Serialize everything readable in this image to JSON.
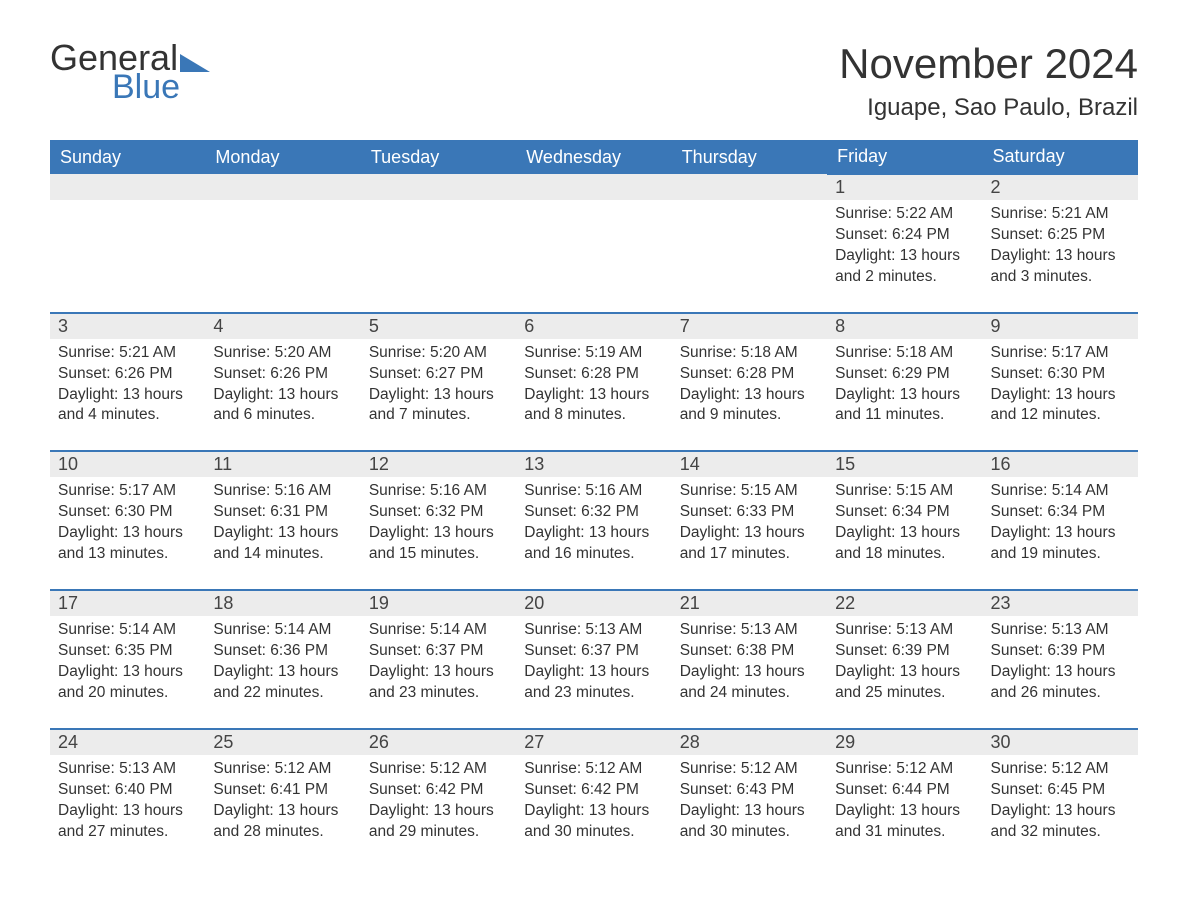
{
  "brand": {
    "word1": "General",
    "word2": "Blue",
    "accent_color": "#3a77b7"
  },
  "title": "November 2024",
  "location": "Iguape, Sao Paulo, Brazil",
  "colors": {
    "header_bg": "#3a77b7",
    "header_text": "#ffffff",
    "daynum_bg": "#ececec",
    "row_border": "#3a77b7",
    "text": "#333333",
    "background": "#ffffff"
  },
  "columns": [
    "Sunday",
    "Monday",
    "Tuesday",
    "Wednesday",
    "Thursday",
    "Friday",
    "Saturday"
  ],
  "weeks": [
    [
      null,
      null,
      null,
      null,
      null,
      {
        "n": "1",
        "sunrise": "5:22 AM",
        "sunset": "6:24 PM",
        "daylight": "13 hours and 2 minutes."
      },
      {
        "n": "2",
        "sunrise": "5:21 AM",
        "sunset": "6:25 PM",
        "daylight": "13 hours and 3 minutes."
      }
    ],
    [
      {
        "n": "3",
        "sunrise": "5:21 AM",
        "sunset": "6:26 PM",
        "daylight": "13 hours and 4 minutes."
      },
      {
        "n": "4",
        "sunrise": "5:20 AM",
        "sunset": "6:26 PM",
        "daylight": "13 hours and 6 minutes."
      },
      {
        "n": "5",
        "sunrise": "5:20 AM",
        "sunset": "6:27 PM",
        "daylight": "13 hours and 7 minutes."
      },
      {
        "n": "6",
        "sunrise": "5:19 AM",
        "sunset": "6:28 PM",
        "daylight": "13 hours and 8 minutes."
      },
      {
        "n": "7",
        "sunrise": "5:18 AM",
        "sunset": "6:28 PM",
        "daylight": "13 hours and 9 minutes."
      },
      {
        "n": "8",
        "sunrise": "5:18 AM",
        "sunset": "6:29 PM",
        "daylight": "13 hours and 11 minutes."
      },
      {
        "n": "9",
        "sunrise": "5:17 AM",
        "sunset": "6:30 PM",
        "daylight": "13 hours and 12 minutes."
      }
    ],
    [
      {
        "n": "10",
        "sunrise": "5:17 AM",
        "sunset": "6:30 PM",
        "daylight": "13 hours and 13 minutes."
      },
      {
        "n": "11",
        "sunrise": "5:16 AM",
        "sunset": "6:31 PM",
        "daylight": "13 hours and 14 minutes."
      },
      {
        "n": "12",
        "sunrise": "5:16 AM",
        "sunset": "6:32 PM",
        "daylight": "13 hours and 15 minutes."
      },
      {
        "n": "13",
        "sunrise": "5:16 AM",
        "sunset": "6:32 PM",
        "daylight": "13 hours and 16 minutes."
      },
      {
        "n": "14",
        "sunrise": "5:15 AM",
        "sunset": "6:33 PM",
        "daylight": "13 hours and 17 minutes."
      },
      {
        "n": "15",
        "sunrise": "5:15 AM",
        "sunset": "6:34 PM",
        "daylight": "13 hours and 18 minutes."
      },
      {
        "n": "16",
        "sunrise": "5:14 AM",
        "sunset": "6:34 PM",
        "daylight": "13 hours and 19 minutes."
      }
    ],
    [
      {
        "n": "17",
        "sunrise": "5:14 AM",
        "sunset": "6:35 PM",
        "daylight": "13 hours and 20 minutes."
      },
      {
        "n": "18",
        "sunrise": "5:14 AM",
        "sunset": "6:36 PM",
        "daylight": "13 hours and 22 minutes."
      },
      {
        "n": "19",
        "sunrise": "5:14 AM",
        "sunset": "6:37 PM",
        "daylight": "13 hours and 23 minutes."
      },
      {
        "n": "20",
        "sunrise": "5:13 AM",
        "sunset": "6:37 PM",
        "daylight": "13 hours and 23 minutes."
      },
      {
        "n": "21",
        "sunrise": "5:13 AM",
        "sunset": "6:38 PM",
        "daylight": "13 hours and 24 minutes."
      },
      {
        "n": "22",
        "sunrise": "5:13 AM",
        "sunset": "6:39 PM",
        "daylight": "13 hours and 25 minutes."
      },
      {
        "n": "23",
        "sunrise": "5:13 AM",
        "sunset": "6:39 PM",
        "daylight": "13 hours and 26 minutes."
      }
    ],
    [
      {
        "n": "24",
        "sunrise": "5:13 AM",
        "sunset": "6:40 PM",
        "daylight": "13 hours and 27 minutes."
      },
      {
        "n": "25",
        "sunrise": "5:12 AM",
        "sunset": "6:41 PM",
        "daylight": "13 hours and 28 minutes."
      },
      {
        "n": "26",
        "sunrise": "5:12 AM",
        "sunset": "6:42 PM",
        "daylight": "13 hours and 29 minutes."
      },
      {
        "n": "27",
        "sunrise": "5:12 AM",
        "sunset": "6:42 PM",
        "daylight": "13 hours and 30 minutes."
      },
      {
        "n": "28",
        "sunrise": "5:12 AM",
        "sunset": "6:43 PM",
        "daylight": "13 hours and 30 minutes."
      },
      {
        "n": "29",
        "sunrise": "5:12 AM",
        "sunset": "6:44 PM",
        "daylight": "13 hours and 31 minutes."
      },
      {
        "n": "30",
        "sunrise": "5:12 AM",
        "sunset": "6:45 PM",
        "daylight": "13 hours and 32 minutes."
      }
    ]
  ],
  "labels": {
    "sunrise": "Sunrise: ",
    "sunset": "Sunset: ",
    "daylight": "Daylight: "
  }
}
